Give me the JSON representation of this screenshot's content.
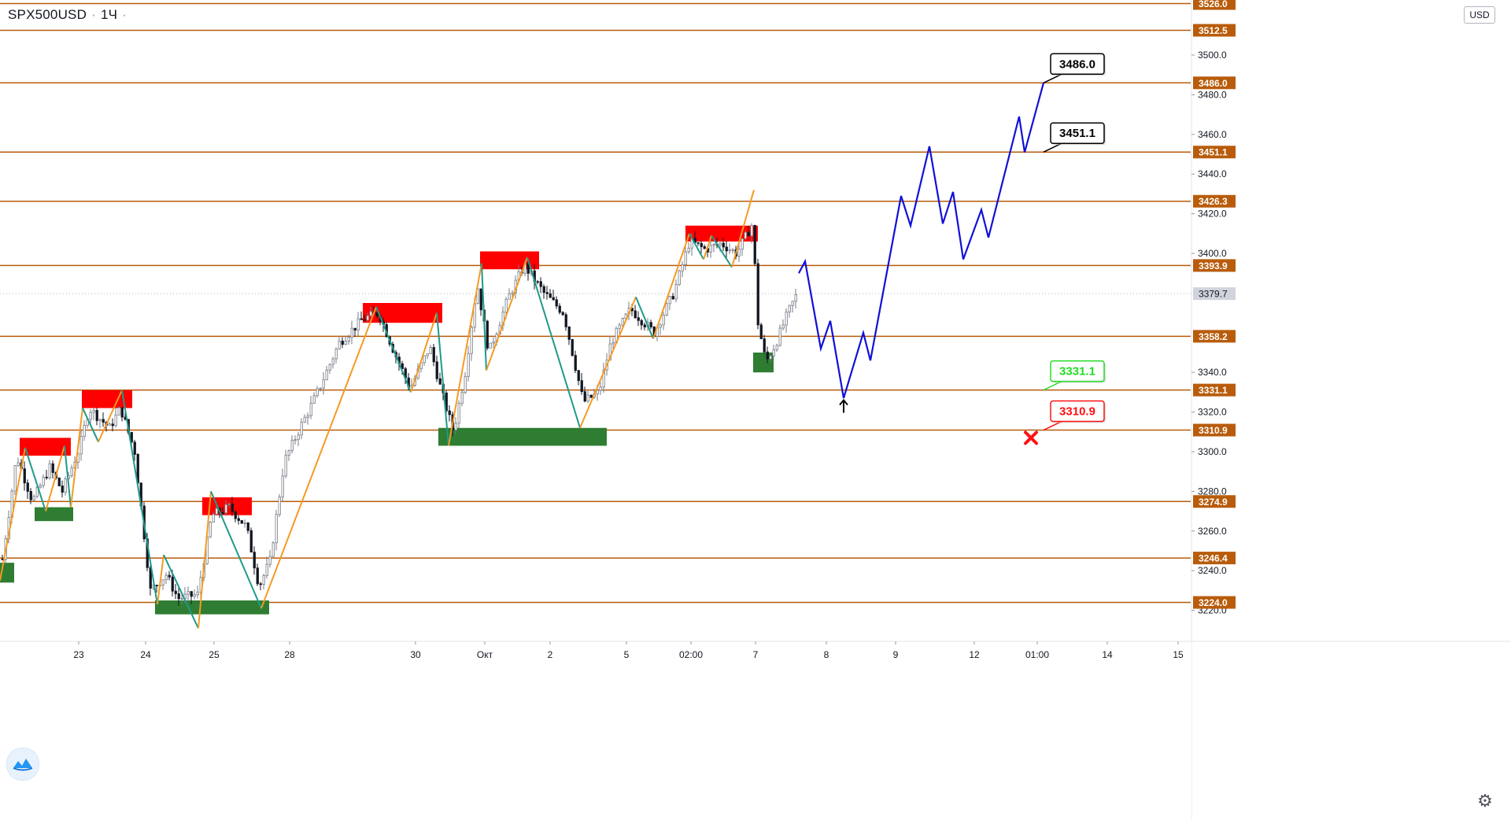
{
  "app": {
    "symbol": "SPX500USD",
    "interval": "1Ч",
    "currency": "USD",
    "settings_icon": "gear-icon",
    "logo_icon": "tradingview-logo-icon"
  },
  "colors": {
    "level_line": "#b85c0b",
    "level_label_bg": "#b85c0b",
    "current_price_bg": "#d1d4dc",
    "bull_candle": "#787b86",
    "bear_candle": "#131722",
    "zigzag_up": "#f59a23",
    "zigzag_down": "#1f9a8a",
    "forecast": "#1010d8",
    "supply_zone": "#ff0000",
    "demand_zone": "#2e7d32",
    "target_box_border": "#000000",
    "support_box_border": "#22dd22",
    "stop_box_border": "#ff1111"
  },
  "chart_data": {
    "type": "candlestick",
    "title": "",
    "xlabel": "",
    "ylabel": "",
    "ylim": [
      3212,
      3525
    ],
    "grid": false,
    "x_tick_labels": [
      "23",
      "24",
      "25",
      "28",
      "30",
      "Окт",
      "2",
      "5",
      "02:00",
      "7",
      "8",
      "9",
      "12",
      "01:00",
      "14",
      "15"
    ],
    "y_tick_labels": [
      "3500.0",
      "3480.0",
      "3460.0",
      "3440.0",
      "3420.0",
      "3400.0",
      "3340.0",
      "3320.0",
      "3300.0",
      "3280.0",
      "3260.0",
      "3240.0",
      "3220.0"
    ],
    "y_tick_values": [
      3500,
      3480,
      3460,
      3440,
      3420,
      3400,
      3340,
      3320,
      3300,
      3280,
      3260,
      3240,
      3220
    ],
    "levels": [
      {
        "value": 3526.0,
        "label": "3526.0"
      },
      {
        "value": 3512.5,
        "label": "3512.5"
      },
      {
        "value": 3486.0,
        "label": "3486.0"
      },
      {
        "value": 3451.1,
        "label": "3451.1"
      },
      {
        "value": 3426.3,
        "label": "3426.3"
      },
      {
        "value": 3393.9,
        "label": "3393.9"
      },
      {
        "value": 3358.2,
        "label": "3358.2"
      },
      {
        "value": 3331.1,
        "label": "3331.1"
      },
      {
        "value": 3310.9,
        "label": "3310.9"
      },
      {
        "value": 3274.9,
        "label": "3274.9"
      },
      {
        "value": 3246.4,
        "label": "3246.4"
      },
      {
        "value": 3224.0,
        "label": "3224.0"
      }
    ],
    "current_price": {
      "value": 3379.7,
      "label": "3379.7"
    },
    "price_path": [
      [
        0,
        3240
      ],
      [
        20,
        3298
      ],
      [
        40,
        3275
      ],
      [
        62,
        3292
      ],
      [
        78,
        3280
      ],
      [
        100,
        3302
      ],
      [
        112,
        3322
      ],
      [
        138,
        3312
      ],
      [
        152,
        3322
      ],
      [
        170,
        3300
      ],
      [
        190,
        3230
      ],
      [
        210,
        3238
      ],
      [
        225,
        3226
      ],
      [
        250,
        3228
      ],
      [
        268,
        3268
      ],
      [
        290,
        3272
      ],
      [
        312,
        3262
      ],
      [
        328,
        3232
      ],
      [
        342,
        3245
      ],
      [
        360,
        3295
      ],
      [
        380,
        3312
      ],
      [
        400,
        3328
      ],
      [
        430,
        3355
      ],
      [
        460,
        3367
      ],
      [
        480,
        3370
      ],
      [
        500,
        3350
      ],
      [
        520,
        3332
      ],
      [
        545,
        3353
      ],
      [
        560,
        3330
      ],
      [
        575,
        3310
      ],
      [
        590,
        3340
      ],
      [
        605,
        3385
      ],
      [
        620,
        3350
      ],
      [
        645,
        3378
      ],
      [
        665,
        3394
      ],
      [
        690,
        3380
      ],
      [
        715,
        3370
      ],
      [
        740,
        3325
      ],
      [
        760,
        3330
      ],
      [
        775,
        3355
      ],
      [
        800,
        3372
      ],
      [
        830,
        3360
      ],
      [
        855,
        3380
      ],
      [
        875,
        3406
      ],
      [
        895,
        3402
      ],
      [
        915,
        3405
      ],
      [
        935,
        3400
      ],
      [
        955,
        3415
      ],
      [
        962,
        3365
      ],
      [
        972,
        3345
      ],
      [
        985,
        3355
      ],
      [
        1000,
        3370
      ],
      [
        1012,
        3380
      ]
    ],
    "zigzag": [
      [
        0,
        3235
      ],
      [
        32,
        3302
      ],
      [
        58,
        3270
      ],
      [
        82,
        3303
      ],
      [
        90,
        3272
      ],
      [
        105,
        3322
      ],
      [
        125,
        3305
      ],
      [
        155,
        3331
      ],
      [
        200,
        3223
      ],
      [
        208,
        3248
      ],
      [
        252,
        3211
      ],
      [
        268,
        3280
      ],
      [
        332,
        3221
      ],
      [
        478,
        3373
      ],
      [
        522,
        3330
      ],
      [
        555,
        3370
      ],
      [
        570,
        3303
      ],
      [
        612,
        3395
      ],
      [
        618,
        3341
      ],
      [
        670,
        3398
      ],
      [
        737,
        3312
      ],
      [
        808,
        3378
      ],
      [
        830,
        3357
      ],
      [
        876,
        3410
      ],
      [
        894,
        3397
      ],
      [
        904,
        3409
      ],
      [
        930,
        3393
      ],
      [
        958,
        3432
      ]
    ],
    "forecast": [
      [
        1015,
        3390
      ],
      [
        1023,
        3396
      ],
      [
        1043,
        3352
      ],
      [
        1055,
        3366
      ],
      [
        1072,
        3327
      ],
      [
        1097,
        3360
      ],
      [
        1106,
        3346
      ],
      [
        1145,
        3429
      ],
      [
        1157,
        3414
      ],
      [
        1181,
        3454
      ],
      [
        1198,
        3415
      ],
      [
        1211,
        3431
      ],
      [
        1224,
        3397
      ],
      [
        1247,
        3422
      ],
      [
        1256,
        3408
      ],
      [
        1295,
        3469
      ],
      [
        1302,
        3451
      ],
      [
        1326,
        3486
      ]
    ],
    "supply_zones": [
      {
        "x0": 25,
        "x1": 90,
        "top": 3307,
        "bottom": 3298
      },
      {
        "x0": 104,
        "x1": 168,
        "top": 3331,
        "bottom": 3322
      },
      {
        "x0": 257,
        "x1": 320,
        "top": 3277,
        "bottom": 3268
      },
      {
        "x0": 461,
        "x1": 562,
        "top": 3375,
        "bottom": 3365
      },
      {
        "x0": 610,
        "x1": 685,
        "top": 3401,
        "bottom": 3392
      },
      {
        "x0": 871,
        "x1": 963,
        "top": 3414,
        "bottom": 3406
      }
    ],
    "demand_zones": [
      {
        "x0": 0,
        "x1": 18,
        "top": 3244,
        "bottom": 3234
      },
      {
        "x0": 44,
        "x1": 93,
        "top": 3272,
        "bottom": 3265
      },
      {
        "x0": 197,
        "x1": 342,
        "top": 3225,
        "bottom": 3218
      },
      {
        "x0": 557,
        "x1": 771,
        "top": 3312,
        "bottom": 3303
      },
      {
        "x0": 957,
        "x1": 983,
        "top": 3350,
        "bottom": 3340
      }
    ],
    "price_callouts": [
      {
        "label": "3486.0",
        "value": 3486.0,
        "at": 1326,
        "kind": "target"
      },
      {
        "label": "3451.1",
        "value": 3451.1,
        "at": 1326,
        "kind": "target"
      },
      {
        "label": "3331.1",
        "value": 3331.1,
        "at": 1326,
        "kind": "support"
      },
      {
        "label": "3310.9",
        "value": 3310.9,
        "at": 1326,
        "kind": "stop"
      }
    ],
    "up_arrow": {
      "at": 1072,
      "value": 3326
    },
    "stop_marker": {
      "at": 1310,
      "value": 3307
    }
  }
}
